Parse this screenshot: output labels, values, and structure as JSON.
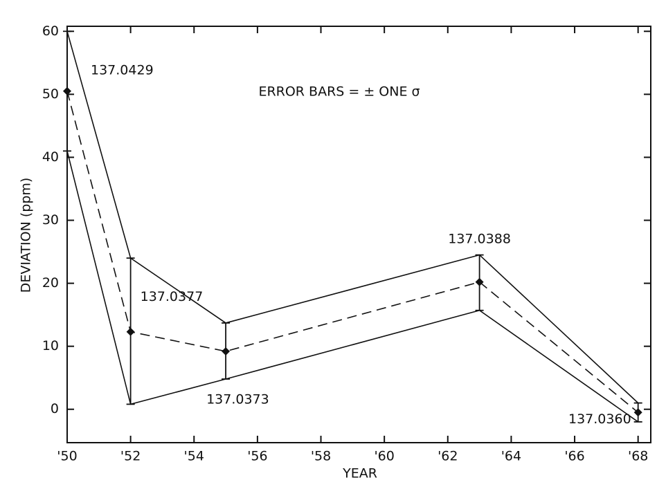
{
  "chart_data": {
    "type": "line",
    "annotation": "ERROR BARS = ± ONE σ",
    "x_label": "YEAR",
    "y_label": "DEVIATION (ppm)",
    "x": [
      50,
      52,
      55,
      63,
      68
    ],
    "values": [
      50.5,
      12.3,
      9.2,
      20.2,
      -0.5
    ],
    "upper": [
      60,
      24,
      13.7,
      24.5,
      1
    ],
    "lower": [
      41,
      0.8,
      4.8,
      15.7,
      -2
    ],
    "point_labels": [
      "137.0429",
      "137.0377",
      "137.0373",
      "137.0388",
      "137.0360"
    ],
    "color": "#111111",
    "xlim": [
      50,
      68.4
    ],
    "ylim": [
      -5.3,
      60.8
    ],
    "xticks": [
      {
        "value": 50,
        "label": "'50"
      },
      {
        "value": 52,
        "label": "'52"
      },
      {
        "value": 54,
        "label": "'54"
      },
      {
        "value": 56,
        "label": "'56"
      },
      {
        "value": 58,
        "label": "'58"
      },
      {
        "value": 60,
        "label": "'60"
      },
      {
        "value": 62,
        "label": "'62"
      },
      {
        "value": 64,
        "label": "'64"
      },
      {
        "value": 66,
        "label": "'66"
      },
      {
        "value": 68,
        "label": "'68"
      }
    ],
    "yticks": [
      0,
      10,
      20,
      30,
      40,
      50,
      60
    ]
  }
}
